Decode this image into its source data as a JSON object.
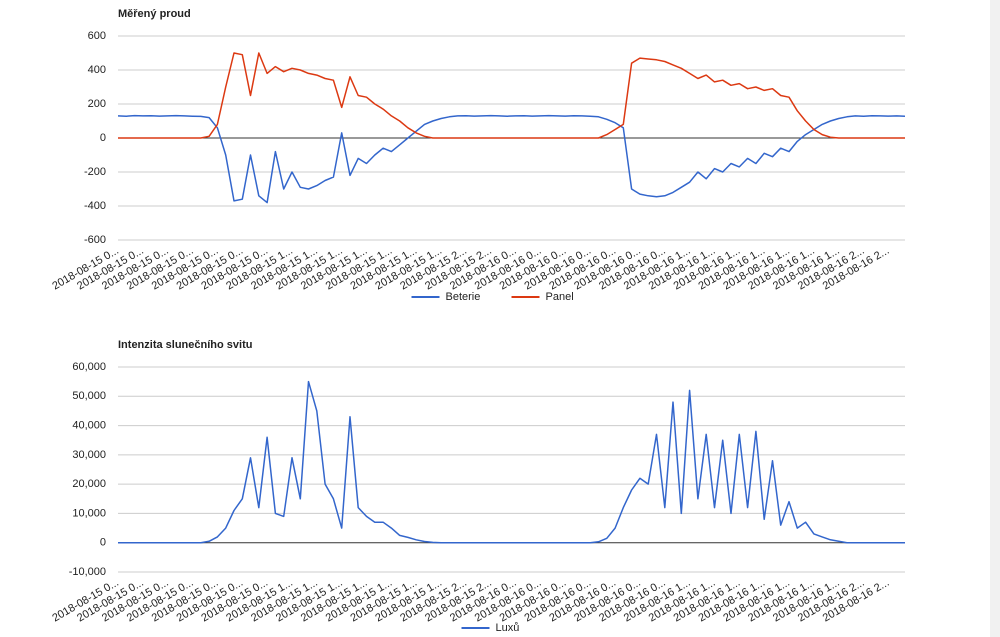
{
  "chart_data": [
    {
      "type": "line",
      "title": "Měřený proud",
      "categories": [
        "2018-08-15 0...",
        null,
        null,
        "2018-08-15 0...",
        null,
        null,
        "2018-08-15 0...",
        null,
        null,
        "2018-08-15 0...",
        null,
        null,
        "2018-08-15 0...",
        null,
        null,
        "2018-08-15 0...",
        null,
        null,
        "2018-08-15 0...",
        null,
        null,
        "2018-08-15 1...",
        null,
        null,
        "2018-08-15 1...",
        null,
        null,
        "2018-08-15 1...",
        null,
        null,
        "2018-08-15 1...",
        null,
        null,
        "2018-08-15 1...",
        null,
        null,
        "2018-08-15 1...",
        null,
        null,
        "2018-08-15 1...",
        null,
        null,
        "2018-08-15 2...",
        null,
        null,
        "2018-08-15 2...",
        null,
        null,
        "2018-08-16 0...",
        null,
        null,
        "2018-08-16 0...",
        null,
        null,
        "2018-08-16 0...",
        null,
        null,
        "2018-08-16 0...",
        null,
        null,
        "2018-08-16 0...",
        null,
        null,
        "2018-08-16 0...",
        null,
        null,
        "2018-08-16 0...",
        null,
        null,
        "2018-08-16 1...",
        null,
        null,
        "2018-08-16 1...",
        null,
        null,
        "2018-08-16 1...",
        null,
        null,
        "2018-08-16 1...",
        null,
        null,
        "2018-08-16 1...",
        null,
        null,
        "2018-08-16 1...",
        null,
        null,
        "2018-08-16 1...",
        null,
        null,
        "2018-08-16 2...",
        null,
        null,
        "2018-08-16 2...",
        null,
        null
      ],
      "series": [
        {
          "name": "Beterie",
          "color": "#3366cc",
          "values": [
            130,
            128,
            132,
            130,
            131,
            129,
            130,
            132,
            130,
            128,
            127,
            120,
            60,
            -100,
            -370,
            -360,
            -100,
            -340,
            -380,
            -80,
            -300,
            -200,
            -290,
            -300,
            -280,
            -250,
            -230,
            30,
            -220,
            -120,
            -150,
            -100,
            -60,
            -80,
            -40,
            0,
            40,
            80,
            100,
            115,
            125,
            130,
            131,
            129,
            130,
            132,
            130,
            128,
            130,
            131,
            129,
            130,
            132,
            130,
            129,
            131,
            130,
            128,
            125,
            110,
            90,
            60,
            -300,
            -330,
            -340,
            -345,
            -340,
            -320,
            -290,
            -260,
            -200,
            -240,
            -180,
            -200,
            -150,
            -170,
            -120,
            -150,
            -90,
            -110,
            -60,
            -80,
            -20,
            20,
            50,
            80,
            100,
            115,
            125,
            130,
            128,
            131,
            130,
            129,
            130,
            128
          ]
        },
        {
          "name": "Panel",
          "color": "#dc3912",
          "values": [
            0,
            0,
            0,
            0,
            0,
            0,
            0,
            0,
            0,
            0,
            0,
            10,
            80,
            300,
            500,
            490,
            250,
            500,
            380,
            420,
            390,
            410,
            400,
            380,
            370,
            350,
            340,
            180,
            360,
            250,
            240,
            200,
            170,
            130,
            100,
            60,
            30,
            10,
            0,
            0,
            0,
            0,
            0,
            0,
            0,
            0,
            0,
            0,
            0,
            0,
            0,
            0,
            0,
            0,
            0,
            0,
            0,
            0,
            0,
            20,
            50,
            80,
            440,
            470,
            465,
            460,
            450,
            430,
            410,
            380,
            350,
            370,
            330,
            340,
            310,
            320,
            290,
            300,
            280,
            290,
            250,
            240,
            160,
            100,
            50,
            20,
            5,
            0,
            0,
            0,
            0,
            0,
            0,
            0,
            0,
            0
          ]
        }
      ],
      "ylim": [
        -600,
        600
      ],
      "yticks": [
        -600,
        -400,
        -200,
        0,
        200,
        400,
        600
      ],
      "grid": true,
      "legend": "bottom"
    },
    {
      "type": "line",
      "title": "Intenzita slunečního svitu",
      "categories": [
        "2018-08-15 0...",
        null,
        null,
        "2018-08-15 0...",
        null,
        null,
        "2018-08-15 0...",
        null,
        null,
        "2018-08-15 0...",
        null,
        null,
        "2018-08-15 0...",
        null,
        null,
        "2018-08-15 0...",
        null,
        null,
        "2018-08-15 0...",
        null,
        null,
        "2018-08-15 1...",
        null,
        null,
        "2018-08-15 1...",
        null,
        null,
        "2018-08-15 1...",
        null,
        null,
        "2018-08-15 1...",
        null,
        null,
        "2018-08-15 1...",
        null,
        null,
        "2018-08-15 1...",
        null,
        null,
        "2018-08-15 1...",
        null,
        null,
        "2018-08-15 2...",
        null,
        null,
        "2018-08-15 2...",
        null,
        null,
        "2018-08-16 0...",
        null,
        null,
        "2018-08-16 0...",
        null,
        null,
        "2018-08-16 0...",
        null,
        null,
        "2018-08-16 0...",
        null,
        null,
        "2018-08-16 0...",
        null,
        null,
        "2018-08-16 0...",
        null,
        null,
        "2018-08-16 0...",
        null,
        null,
        "2018-08-16 1...",
        null,
        null,
        "2018-08-16 1...",
        null,
        null,
        "2018-08-16 1...",
        null,
        null,
        "2018-08-16 1...",
        null,
        null,
        "2018-08-16 1...",
        null,
        null,
        "2018-08-16 1...",
        null,
        null,
        "2018-08-16 1...",
        null,
        null,
        "2018-08-16 2...",
        null,
        null,
        "2018-08-16 2...",
        null,
        null
      ],
      "series": [
        {
          "name": "Luxů",
          "color": "#3366cc",
          "values": [
            0,
            0,
            0,
            0,
            0,
            0,
            0,
            0,
            0,
            0,
            0,
            500,
            2000,
            5000,
            11000,
            15000,
            29000,
            12000,
            36000,
            10000,
            9000,
            29000,
            15000,
            55000,
            45000,
            20000,
            15000,
            5000,
            43000,
            12000,
            9000,
            7000,
            7000,
            5000,
            2500,
            1800,
            1000,
            400,
            100,
            0,
            0,
            0,
            0,
            0,
            0,
            0,
            0,
            0,
            0,
            0,
            0,
            0,
            0,
            0,
            0,
            0,
            0,
            0,
            300,
            1500,
            5000,
            12000,
            18000,
            22000,
            20000,
            37000,
            12000,
            48000,
            10000,
            52000,
            15000,
            37000,
            12000,
            35000,
            10000,
            37000,
            12000,
            38000,
            8000,
            28000,
            6000,
            14000,
            5000,
            7000,
            3000,
            2000,
            1000,
            500,
            0,
            0,
            0,
            0,
            0,
            0,
            0,
            0
          ]
        }
      ],
      "ylim": [
        -10000,
        60000
      ],
      "yticks": [
        {
          "value": -10000,
          "label": "-10,000"
        },
        0,
        {
          "value": 10000,
          "label": "10,000"
        },
        {
          "value": 20000,
          "label": "20,000"
        },
        {
          "value": 30000,
          "label": "30,000"
        },
        {
          "value": 40000,
          "label": "40,000"
        },
        {
          "value": 50000,
          "label": "50,000"
        },
        {
          "value": 60000,
          "label": "60,000"
        }
      ],
      "grid": true,
      "legend": "bottom"
    }
  ]
}
